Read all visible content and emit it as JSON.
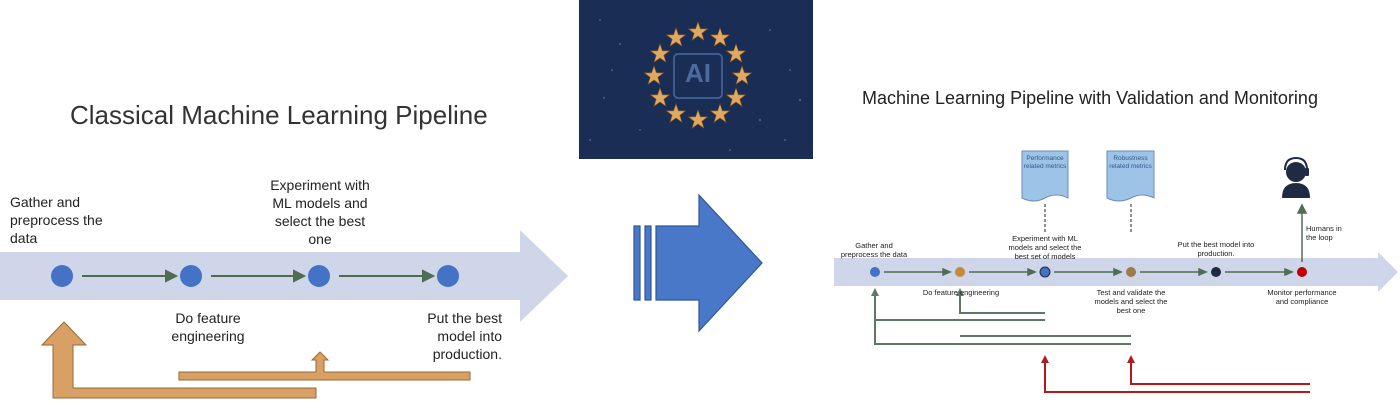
{
  "colors": {
    "band": "#cfd6ea",
    "node_blue": "#4472c4",
    "node_orange": "#c88a3a",
    "node_dark": "#1f2a44",
    "node_red": "#c00000",
    "arrow_gray": "#4f6d52",
    "feedback_orange": "#d9a066",
    "feedback_green": "#5c7a62",
    "feedback_red": "#b31b1b",
    "center_arrow": "#4a78c8",
    "doc_fill": "#9dc3e6"
  },
  "left": {
    "title": "Classical Machine Learning Pipeline",
    "steps": {
      "gather": "Gather and preprocess the data",
      "feature": "Do feature engineering",
      "experiment": "Experiment with ML models and select the best one",
      "production": "Put the best model into production."
    }
  },
  "center": {
    "image_label": "AI",
    "image_description_icon": "eu-ai-stars-image"
  },
  "right": {
    "title": "Machine Learning Pipeline with Validation and Monitoring",
    "docs": {
      "performance": "Performance related metrics",
      "robustness": "Robustness related metrics"
    },
    "human": "Humans in the loop",
    "steps": {
      "gather": "Gather and preprocess the data",
      "feature": "Do feature engineering",
      "experiment": "Experiment with ML models and select the best set of models",
      "validate": "Test and validate the models and select the best one",
      "production": "Put the best model into production.",
      "monitor": "Monitor performance and compliance"
    }
  }
}
